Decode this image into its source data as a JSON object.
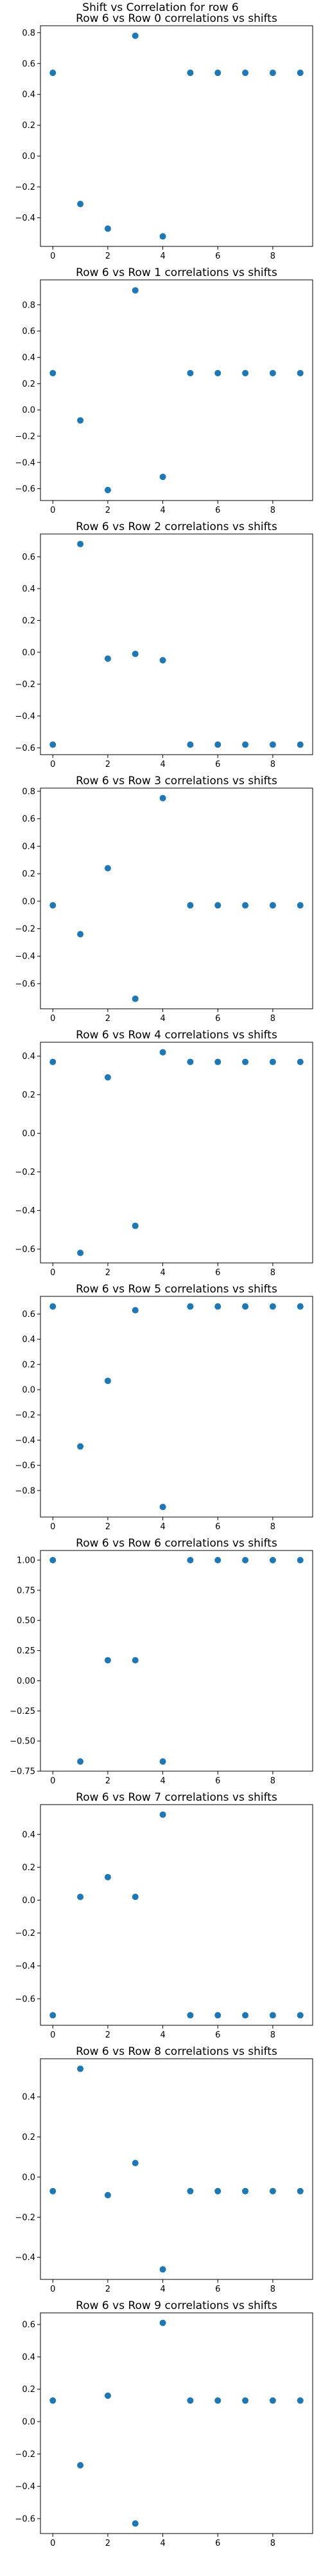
{
  "suptitle": "Shift vs Correlation for row 6",
  "marker_color": "#1f77b4",
  "chart_data": [
    {
      "type": "scatter",
      "title": "Row 6 vs Row 0 correlations vs shifts",
      "xlabel": "",
      "ylabel": "",
      "x": [
        0,
        1,
        2,
        3,
        4,
        5,
        6,
        7,
        8,
        9
      ],
      "y": [
        0.54,
        -0.31,
        -0.47,
        0.78,
        -0.52,
        0.54,
        0.54,
        0.54,
        0.54,
        0.54
      ],
      "xlim": [
        -0.45,
        9.45
      ],
      "ylim": [
        -0.585,
        0.845
      ],
      "xticks": [
        0,
        2,
        4,
        6,
        8
      ],
      "yticks": [
        -0.4,
        -0.2,
        0.0,
        0.2,
        0.4,
        0.6,
        0.8
      ]
    },
    {
      "type": "scatter",
      "title": "Row 6 vs Row 1 correlations vs shifts",
      "xlabel": "",
      "ylabel": "",
      "x": [
        0,
        1,
        2,
        3,
        4,
        5,
        6,
        7,
        8,
        9
      ],
      "y": [
        0.28,
        -0.08,
        -0.61,
        0.91,
        -0.51,
        0.28,
        0.28,
        0.28,
        0.28,
        0.28
      ],
      "xlim": [
        -0.45,
        9.45
      ],
      "ylim": [
        -0.69,
        0.99
      ],
      "xticks": [
        0,
        2,
        4,
        6,
        8
      ],
      "yticks": [
        -0.6,
        -0.4,
        -0.2,
        0.0,
        0.2,
        0.4,
        0.6,
        0.8
      ]
    },
    {
      "type": "scatter",
      "title": "Row 6 vs Row 2 correlations vs shifts",
      "xlabel": "",
      "ylabel": "",
      "x": [
        0,
        1,
        2,
        3,
        4,
        5,
        6,
        7,
        8,
        9
      ],
      "y": [
        -0.58,
        0.68,
        -0.04,
        -0.01,
        -0.05,
        -0.58,
        -0.58,
        -0.58,
        -0.58,
        -0.58
      ],
      "xlim": [
        -0.45,
        9.45
      ],
      "ylim": [
        -0.643,
        0.743
      ],
      "xticks": [
        0,
        2,
        4,
        6,
        8
      ],
      "yticks": [
        -0.6,
        -0.4,
        -0.2,
        0.0,
        0.2,
        0.4,
        0.6
      ]
    },
    {
      "type": "scatter",
      "title": "Row 6 vs Row 3 correlations vs shifts",
      "xlabel": "",
      "ylabel": "",
      "x": [
        0,
        1,
        2,
        3,
        4,
        5,
        6,
        7,
        8,
        9
      ],
      "y": [
        -0.03,
        -0.24,
        0.24,
        -0.71,
        0.75,
        -0.03,
        -0.03,
        -0.03,
        -0.03,
        -0.03
      ],
      "xlim": [
        -0.45,
        9.45
      ],
      "ylim": [
        -0.783,
        0.823
      ],
      "xticks": [
        0,
        2,
        4,
        6,
        8
      ],
      "yticks": [
        -0.6,
        -0.4,
        -0.2,
        0.0,
        0.2,
        0.4,
        0.6,
        0.8
      ]
    },
    {
      "type": "scatter",
      "title": "Row 6 vs Row 4 correlations vs shifts",
      "xlabel": "",
      "ylabel": "",
      "x": [
        0,
        1,
        2,
        3,
        4,
        5,
        6,
        7,
        8,
        9
      ],
      "y": [
        0.37,
        -0.62,
        0.29,
        -0.48,
        0.42,
        0.37,
        0.37,
        0.37,
        0.37,
        0.37
      ],
      "xlim": [
        -0.45,
        9.45
      ],
      "ylim": [
        -0.672,
        0.472
      ],
      "xticks": [
        0,
        2,
        4,
        6,
        8
      ],
      "yticks": [
        -0.6,
        -0.4,
        -0.2,
        0.0,
        0.2,
        0.4
      ]
    },
    {
      "type": "scatter",
      "title": "Row 6 vs Row 5 correlations vs shifts",
      "xlabel": "",
      "ylabel": "",
      "x": [
        0,
        1,
        2,
        3,
        4,
        5,
        6,
        7,
        8,
        9
      ],
      "y": [
        0.66,
        -0.45,
        0.07,
        0.63,
        -0.93,
        0.66,
        0.66,
        0.66,
        0.66,
        0.66
      ],
      "xlim": [
        -0.45,
        9.45
      ],
      "ylim": [
        -1.01,
        0.74
      ],
      "xticks": [
        0,
        2,
        4,
        6,
        8
      ],
      "yticks": [
        -0.8,
        -0.6,
        -0.4,
        -0.2,
        0.0,
        0.2,
        0.4,
        0.6
      ]
    },
    {
      "type": "scatter",
      "title": "Row 6 vs Row 6 correlations vs shifts",
      "xlabel": "",
      "ylabel": "",
      "x": [
        0,
        1,
        2,
        3,
        4,
        5,
        6,
        7,
        8,
        9
      ],
      "y": [
        1.0,
        -0.67,
        0.17,
        0.17,
        -0.67,
        1.0,
        1.0,
        1.0,
        1.0,
        1.0
      ],
      "xlim": [
        -0.45,
        9.45
      ],
      "ylim": [
        -0.75,
        1.08
      ],
      "xticks": [
        0,
        2,
        4,
        6,
        8
      ],
      "yticks": [
        -0.75,
        -0.5,
        -0.25,
        0.0,
        0.25,
        0.5,
        0.75,
        1.0
      ]
    },
    {
      "type": "scatter",
      "title": "Row 6 vs Row 7 correlations vs shifts",
      "xlabel": "",
      "ylabel": "",
      "x": [
        0,
        1,
        2,
        3,
        4,
        5,
        6,
        7,
        8,
        9
      ],
      "y": [
        -0.7,
        0.02,
        0.14,
        0.02,
        0.52,
        -0.7,
        -0.7,
        -0.7,
        -0.7,
        -0.7
      ],
      "xlim": [
        -0.45,
        9.45
      ],
      "ylim": [
        -0.761,
        0.581
      ],
      "xticks": [
        0,
        2,
        4,
        6,
        8
      ],
      "yticks": [
        -0.6,
        -0.4,
        -0.2,
        0.0,
        0.2,
        0.4
      ]
    },
    {
      "type": "scatter",
      "title": "Row 6 vs Row 8 correlations vs shifts",
      "xlabel": "",
      "ylabel": "",
      "x": [
        0,
        1,
        2,
        3,
        4,
        5,
        6,
        7,
        8,
        9
      ],
      "y": [
        -0.07,
        0.54,
        -0.09,
        0.07,
        -0.46,
        -0.07,
        -0.07,
        -0.07,
        -0.07,
        -0.07
      ],
      "xlim": [
        -0.45,
        9.45
      ],
      "ylim": [
        -0.51,
        0.59
      ],
      "xticks": [
        0,
        2,
        4,
        6,
        8
      ],
      "yticks": [
        -0.4,
        -0.2,
        0.0,
        0.2,
        0.4
      ]
    },
    {
      "type": "scatter",
      "title": "Row 6 vs Row 9 correlations vs shifts",
      "xlabel": "",
      "ylabel": "",
      "x": [
        0,
        1,
        2,
        3,
        4,
        5,
        6,
        7,
        8,
        9
      ],
      "y": [
        0.13,
        -0.27,
        0.16,
        -0.63,
        0.61,
        0.13,
        0.13,
        0.13,
        0.13,
        0.13
      ],
      "xlim": [
        -0.45,
        9.45
      ],
      "ylim": [
        -0.692,
        0.672
      ],
      "xticks": [
        0,
        2,
        4,
        6,
        8
      ],
      "yticks": [
        -0.6,
        -0.4,
        -0.2,
        0.0,
        0.2,
        0.4,
        0.6
      ]
    }
  ]
}
